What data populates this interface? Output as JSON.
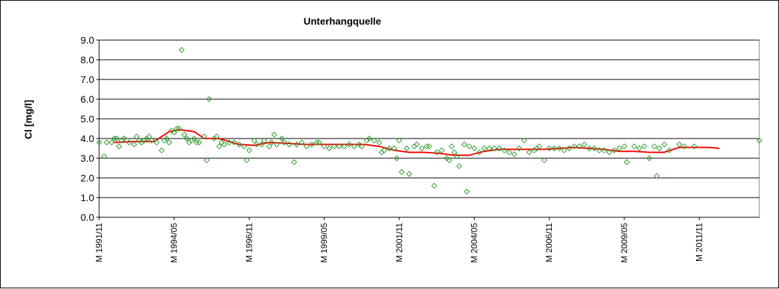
{
  "chart_data": {
    "type": "scatter",
    "title": "Unterhangquelle",
    "ylabel": "Cl [mg/l]",
    "xlabel": "",
    "ylim": [
      0,
      9
    ],
    "yticks": [
      "0.0",
      "1.0",
      "2.0",
      "3.0",
      "4.0",
      "5.0",
      "6.0",
      "7.0",
      "8.0",
      "9.0"
    ],
    "x_tick_labels": [
      "M 1991/11",
      "M 1994/05",
      "M 1996/11",
      "M 1999/05",
      "M 2001/11",
      "M 2004/05",
      "M 2006/11",
      "M 2009/05",
      "M 2011/11"
    ],
    "xlim": [
      "1991-11",
      "2013-11"
    ],
    "grid": "horizontal",
    "series": [
      {
        "kind": "scatter",
        "marker": "diamond",
        "color": "#2e9a2e",
        "points": [
          [
            "1991-11",
            3.8
          ],
          [
            "1992-01",
            3.1
          ],
          [
            "1992-02",
            3.8
          ],
          [
            "1992-04",
            3.8
          ],
          [
            "1992-05",
            4.0
          ],
          [
            "1992-06",
            4.0
          ],
          [
            "1992-07",
            3.6
          ],
          [
            "1992-08",
            3.9
          ],
          [
            "1992-09",
            4.0
          ],
          [
            "1992-11",
            3.8
          ],
          [
            "1993-01",
            3.7
          ],
          [
            "1993-02",
            4.1
          ],
          [
            "1993-03",
            3.9
          ],
          [
            "1993-04",
            3.8
          ],
          [
            "1993-05",
            3.9
          ],
          [
            "1993-06",
            4.0
          ],
          [
            "1993-07",
            4.1
          ],
          [
            "1993-08",
            3.9
          ],
          [
            "1993-10",
            3.8
          ],
          [
            "1993-12",
            3.4
          ],
          [
            "1994-01",
            3.9
          ],
          [
            "1994-02",
            4.0
          ],
          [
            "1994-03",
            3.8
          ],
          [
            "1994-04",
            4.4
          ],
          [
            "1994-05",
            4.3
          ],
          [
            "1994-06",
            4.5
          ],
          [
            "1994-07",
            4.5
          ],
          [
            "1994-08",
            8.5
          ],
          [
            "1994-09",
            4.2
          ],
          [
            "1994-10",
            4.0
          ],
          [
            "1994-11",
            3.8
          ],
          [
            "1994-12",
            3.9
          ],
          [
            "1995-01",
            4.0
          ],
          [
            "1995-02",
            3.8
          ],
          [
            "1995-03",
            3.8
          ],
          [
            "1995-05",
            4.1
          ],
          [
            "1995-06",
            2.9
          ],
          [
            "1995-07",
            6.0
          ],
          [
            "1995-09",
            4.0
          ],
          [
            "1995-10",
            4.1
          ],
          [
            "1995-11",
            3.6
          ],
          [
            "1995-12",
            3.8
          ],
          [
            "1996-01",
            3.7
          ],
          [
            "1996-03",
            3.8
          ],
          [
            "1996-05",
            3.8
          ],
          [
            "1996-07",
            3.7
          ],
          [
            "1996-09",
            3.6
          ],
          [
            "1996-10",
            2.9
          ],
          [
            "1996-11",
            3.4
          ],
          [
            "1997-01",
            3.9
          ],
          [
            "1997-02",
            3.7
          ],
          [
            "1997-04",
            3.7
          ],
          [
            "1997-05",
            3.9
          ],
          [
            "1997-07",
            3.6
          ],
          [
            "1997-08",
            3.8
          ],
          [
            "1997-09",
            4.2
          ],
          [
            "1997-10",
            3.7
          ],
          [
            "1997-12",
            4.0
          ],
          [
            "1998-01",
            3.8
          ],
          [
            "1998-03",
            3.7
          ],
          [
            "1998-05",
            2.8
          ],
          [
            "1998-06",
            3.7
          ],
          [
            "1998-08",
            3.8
          ],
          [
            "1998-10",
            3.6
          ],
          [
            "1998-12",
            3.7
          ],
          [
            "1999-02",
            3.8
          ],
          [
            "1999-03",
            3.8
          ],
          [
            "1999-05",
            3.6
          ],
          [
            "1999-07",
            3.5
          ],
          [
            "1999-09",
            3.6
          ],
          [
            "1999-11",
            3.6
          ],
          [
            "2000-01",
            3.6
          ],
          [
            "2000-03",
            3.7
          ],
          [
            "2000-05",
            3.6
          ],
          [
            "2000-07",
            3.7
          ],
          [
            "2000-08",
            3.6
          ],
          [
            "2000-10",
            3.9
          ],
          [
            "2000-11",
            4.0
          ],
          [
            "2001-01",
            3.9
          ],
          [
            "2001-03",
            3.8
          ],
          [
            "2001-04",
            3.3
          ],
          [
            "2001-05",
            3.4
          ],
          [
            "2001-07",
            3.5
          ],
          [
            "2001-09",
            3.5
          ],
          [
            "2001-10",
            3.0
          ],
          [
            "2001-11",
            3.9
          ],
          [
            "2001-12",
            2.3
          ],
          [
            "2002-02",
            3.5
          ],
          [
            "2002-03",
            2.2
          ],
          [
            "2002-05",
            3.6
          ],
          [
            "2002-06",
            3.7
          ],
          [
            "2002-08",
            3.5
          ],
          [
            "2002-10",
            3.6
          ],
          [
            "2002-11",
            3.6
          ],
          [
            "2003-01",
            1.6
          ],
          [
            "2003-02",
            3.3
          ],
          [
            "2003-04",
            3.4
          ],
          [
            "2003-06",
            3.0
          ],
          [
            "2003-07",
            2.9
          ],
          [
            "2003-08",
            3.6
          ],
          [
            "2003-09",
            3.3
          ],
          [
            "2003-10",
            3.1
          ],
          [
            "2003-11",
            2.6
          ],
          [
            "2004-01",
            3.7
          ],
          [
            "2004-02",
            1.3
          ],
          [
            "2004-03",
            3.6
          ],
          [
            "2004-05",
            3.5
          ],
          [
            "2004-07",
            3.3
          ],
          [
            "2004-09",
            3.5
          ],
          [
            "2004-11",
            3.5
          ],
          [
            "2005-01",
            3.5
          ],
          [
            "2005-03",
            3.5
          ],
          [
            "2005-05",
            3.4
          ],
          [
            "2005-07",
            3.3
          ],
          [
            "2005-09",
            3.2
          ],
          [
            "2005-11",
            3.5
          ],
          [
            "2006-01",
            3.9
          ],
          [
            "2006-03",
            3.3
          ],
          [
            "2006-05",
            3.4
          ],
          [
            "2006-06",
            3.5
          ],
          [
            "2006-07",
            3.6
          ],
          [
            "2006-09",
            2.9
          ],
          [
            "2006-11",
            3.5
          ],
          [
            "2007-01",
            3.5
          ],
          [
            "2007-03",
            3.5
          ],
          [
            "2007-05",
            3.4
          ],
          [
            "2007-07",
            3.5
          ],
          [
            "2007-09",
            3.6
          ],
          [
            "2007-11",
            3.6
          ],
          [
            "2008-01",
            3.7
          ],
          [
            "2008-03",
            3.5
          ],
          [
            "2008-05",
            3.5
          ],
          [
            "2008-07",
            3.4
          ],
          [
            "2008-09",
            3.4
          ],
          [
            "2008-11",
            3.3
          ],
          [
            "2009-01",
            3.4
          ],
          [
            "2009-03",
            3.5
          ],
          [
            "2009-05",
            3.6
          ],
          [
            "2009-06",
            2.8
          ],
          [
            "2009-09",
            3.6
          ],
          [
            "2009-11",
            3.5
          ],
          [
            "2010-01",
            3.6
          ],
          [
            "2010-03",
            3.0
          ],
          [
            "2010-05",
            3.6
          ],
          [
            "2010-06",
            2.1
          ],
          [
            "2010-07",
            3.5
          ],
          [
            "2010-09",
            3.7
          ],
          [
            "2010-11",
            3.4
          ],
          [
            "2011-03",
            3.7
          ],
          [
            "2011-05",
            3.6
          ],
          [
            "2011-09",
            3.6
          ],
          [
            "2013-11",
            3.9
          ]
        ]
      },
      {
        "kind": "line",
        "color": "#ff0000",
        "points": [
          [
            "1992-05",
            3.8
          ],
          [
            "1993-01",
            3.85
          ],
          [
            "1993-09",
            3.85
          ],
          [
            "1994-03",
            4.35
          ],
          [
            "1994-07",
            4.45
          ],
          [
            "1995-01",
            4.35
          ],
          [
            "1995-05",
            4.0
          ],
          [
            "1995-11",
            4.0
          ],
          [
            "1996-07",
            3.7
          ],
          [
            "1997-01",
            3.65
          ],
          [
            "1997-07",
            3.8
          ],
          [
            "1998-03",
            3.75
          ],
          [
            "1998-09",
            3.7
          ],
          [
            "1999-03",
            3.7
          ],
          [
            "1999-09",
            3.7
          ],
          [
            "2000-03",
            3.7
          ],
          [
            "2000-09",
            3.7
          ],
          [
            "2001-03",
            3.6
          ],
          [
            "2001-09",
            3.4
          ],
          [
            "2002-03",
            3.3
          ],
          [
            "2002-09",
            3.3
          ],
          [
            "2003-03",
            3.25
          ],
          [
            "2003-09",
            3.15
          ],
          [
            "2004-03",
            3.15
          ],
          [
            "2004-09",
            3.35
          ],
          [
            "2005-03",
            3.45
          ],
          [
            "2005-09",
            3.45
          ],
          [
            "2006-03",
            3.45
          ],
          [
            "2006-09",
            3.45
          ],
          [
            "2007-03",
            3.5
          ],
          [
            "2007-09",
            3.55
          ],
          [
            "2008-03",
            3.5
          ],
          [
            "2008-09",
            3.45
          ],
          [
            "2009-03",
            3.35
          ],
          [
            "2009-09",
            3.35
          ],
          [
            "2010-03",
            3.3
          ],
          [
            "2010-09",
            3.3
          ],
          [
            "2011-03",
            3.55
          ],
          [
            "2011-09",
            3.55
          ],
          [
            "2012-03",
            3.55
          ],
          [
            "2012-07",
            3.5
          ]
        ]
      }
    ]
  }
}
